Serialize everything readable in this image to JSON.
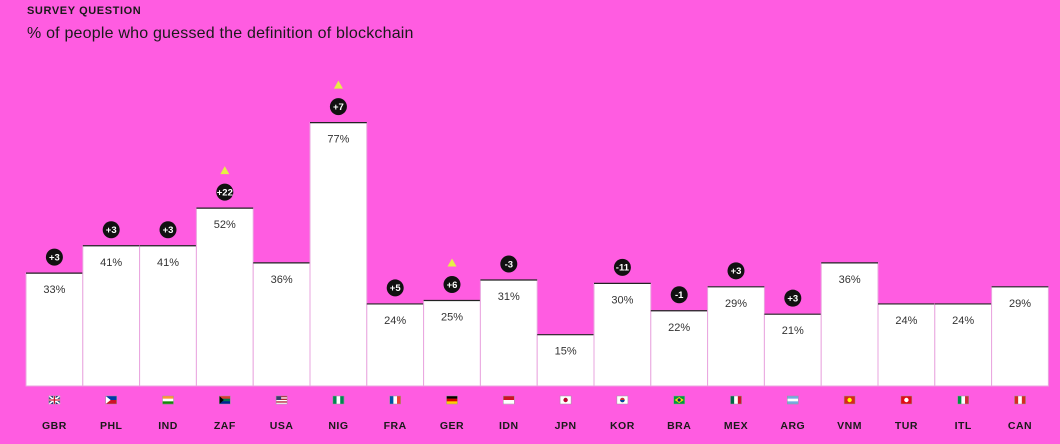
{
  "header": {
    "eyebrow": "SURVEY QUESTION",
    "title": "% of people who guessed the definition of blockchain"
  },
  "colors": {
    "background": "#ff5ce1",
    "bar": "#ffffff",
    "badge": "#111111",
    "highlight_triangle": "#e6f046"
  },
  "chart_data": {
    "type": "bar",
    "title": "% of people who guessed the definition of blockchain",
    "categories": [
      "GBR",
      "PHL",
      "IND",
      "ZAF",
      "USA",
      "NIG",
      "FRA",
      "GER",
      "IDN",
      "JPN",
      "KOR",
      "BRA",
      "MEX",
      "ARG",
      "VNM",
      "TUR",
      "ITL",
      "CAN"
    ],
    "values": [
      33,
      41,
      41,
      52,
      36,
      77,
      24,
      25,
      31,
      15,
      30,
      22,
      29,
      21,
      36,
      24,
      24,
      29
    ],
    "value_labels": [
      "33%",
      "41%",
      "41%",
      "52%",
      "36%",
      "77%",
      "24%",
      "25%",
      "31%",
      "15%",
      "30%",
      "22%",
      "29%",
      "21%",
      "36%",
      "24%",
      "24%",
      "29%"
    ],
    "changes": [
      "+3",
      "+3",
      "+3",
      "+22",
      "",
      "+7",
      "+5",
      "+6",
      "-3",
      "",
      "-11",
      "-1",
      "+3",
      "+3",
      "",
      "",
      "",
      ""
    ],
    "highlighted": [
      "ZAF",
      "NIG",
      "GER"
    ],
    "ylim": [
      0,
      90
    ],
    "xlabel": "",
    "ylabel": "",
    "flags": [
      "flag-gbr-icon",
      "flag-phl-icon",
      "flag-ind-icon",
      "flag-zaf-icon",
      "flag-usa-icon",
      "flag-nig-icon",
      "flag-fra-icon",
      "flag-ger-icon",
      "flag-idn-icon",
      "flag-jpn-icon",
      "flag-kor-icon",
      "flag-bra-icon",
      "flag-mex-icon",
      "flag-arg-icon",
      "flag-vnm-icon",
      "flag-tur-icon",
      "flag-itl-icon",
      "flag-can-icon"
    ]
  }
}
